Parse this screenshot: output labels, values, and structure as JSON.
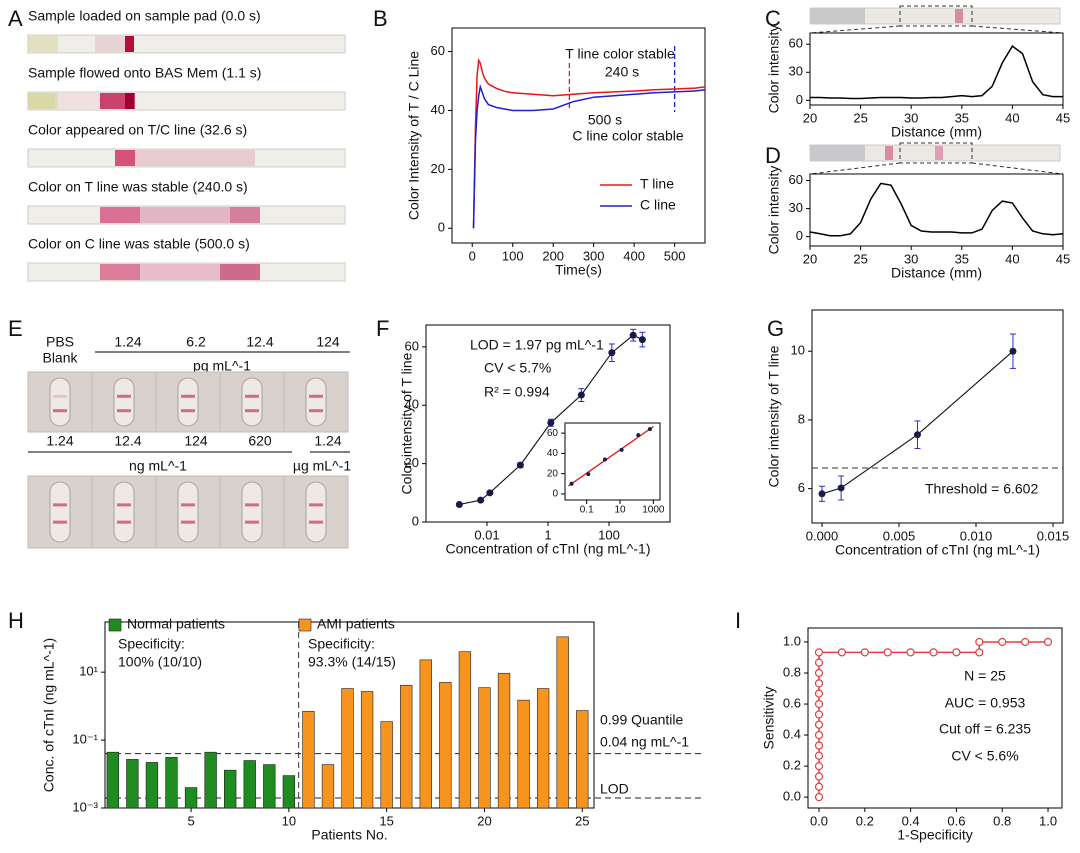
{
  "panel_labels": [
    "A",
    "B",
    "C",
    "D",
    "E",
    "F",
    "G",
    "H",
    "I"
  ],
  "panel_a": {
    "captions": [
      "Sample loaded  on sample pad (0.0 s)",
      "Sample flowed onto BAS Mem (1.1 s)",
      "Color appeared on T/C line (32.6 s)",
      "Color on T line was stable (240.0 s)",
      "Color on C line was stable (500.0 s)"
    ]
  },
  "panel_e": {
    "blank_label": [
      "PBS",
      "Blank"
    ],
    "row1_values": [
      "1.24",
      "6.2",
      "12.4",
      "124"
    ],
    "row1_unit": "pg mL^-1",
    "row2_values": [
      "1.24",
      "12.4",
      "124",
      "620",
      "1.24"
    ],
    "row2_units": [
      "ng mL^-1",
      "µg mL^-1"
    ]
  },
  "chart_data": [
    {
      "type": "line",
      "x": [
        3,
        8,
        12,
        16,
        20,
        25,
        30,
        40,
        60,
        80,
        100,
        150,
        200,
        250,
        300,
        350,
        400,
        450,
        500,
        550,
        575
      ],
      "series": [
        {
          "name": "T line",
          "color": "#e8161b",
          "values": [
            0,
            35,
            52,
            57,
            56,
            53,
            51,
            49,
            47.5,
            46.5,
            46,
            45.5,
            45,
            45.5,
            46,
            46.3,
            46.6,
            47,
            47.3,
            47.6,
            48
          ]
        },
        {
          "name": "C line",
          "color": "#1f1fd6",
          "values": [
            0,
            30,
            40,
            45,
            48,
            46,
            44,
            42,
            41,
            40.5,
            40,
            40,
            40.5,
            43,
            44.5,
            45,
            45.5,
            46,
            46.3,
            46.6,
            47
          ]
        }
      ],
      "xlim": [
        -50,
        575
      ],
      "ylim": [
        -5,
        68
      ],
      "xticks": [
        0,
        100,
        200,
        300,
        400,
        500
      ],
      "yticks": [
        0,
        20,
        40,
        60
      ],
      "xlabel": "Time(s)",
      "ylabel": "Color Intensity of T / C Line",
      "legend": "lower right",
      "vlines": [
        {
          "x": 240,
          "color": "#e8161b"
        },
        {
          "x": 500,
          "color": "#1f1fd6"
        }
      ],
      "annotations": [
        {
          "text": "T line color stable",
          "color": "#e8161b"
        },
        {
          "text": "240 s",
          "color": "#e8161b"
        },
        {
          "text": "500 s",
          "color": "#1f1fd6"
        },
        {
          "text": "C line color stable",
          "color": "#1f1fd6"
        }
      ]
    },
    {
      "type": "line",
      "x": [
        20,
        21,
        22,
        23,
        24,
        25,
        26,
        27,
        28,
        29,
        30,
        31,
        32,
        33,
        34,
        35,
        36,
        37,
        38,
        39,
        40,
        41,
        42,
        43,
        44,
        45
      ],
      "series": [
        {
          "color": "#000000",
          "values": [
            3,
            3,
            2.5,
            2.5,
            2,
            2,
            2.5,
            3,
            3,
            3,
            2.5,
            2.5,
            3,
            3,
            4,
            5,
            4,
            5,
            15,
            40,
            58,
            50,
            20,
            6,
            4,
            4
          ]
        }
      ],
      "xlim": [
        20,
        45
      ],
      "ylim": [
        -5,
        72
      ],
      "xticks": [
        20,
        25,
        30,
        35,
        40,
        45
      ],
      "yticks": [
        0,
        30,
        60
      ],
      "xlabel": "Distance (mm)",
      "ylabel": "Color intensity"
    },
    {
      "type": "line",
      "x": [
        20,
        21,
        22,
        23,
        24,
        25,
        26,
        27,
        28,
        29,
        30,
        31,
        32,
        33,
        34,
        35,
        36,
        37,
        38,
        39,
        40,
        41,
        42,
        43,
        44,
        45
      ],
      "series": [
        {
          "color": "#000000",
          "values": [
            5,
            3,
            1,
            1,
            3,
            15,
            40,
            57,
            55,
            35,
            12,
            6,
            5,
            5,
            5,
            4,
            4,
            8,
            28,
            38,
            36,
            20,
            6,
            3,
            2,
            3
          ]
        }
      ],
      "xlim": [
        20,
        45
      ],
      "ylim": [
        -10,
        67
      ],
      "xticks": [
        20,
        25,
        30,
        35,
        40,
        45
      ],
      "yticks": [
        0,
        30,
        60
      ],
      "xlabel": "Distance (mm)",
      "ylabel": "Color intensity"
    },
    {
      "type": "scatter",
      "x": [
        0.00124,
        0.0062,
        0.0124,
        0.124,
        1.24,
        12.4,
        124,
        620,
        1240
      ],
      "values": [
        6,
        7.5,
        10,
        19.5,
        34,
        43.5,
        58,
        64,
        62.5
      ],
      "errors": [
        0.4,
        0.5,
        0.6,
        0.8,
        1.2,
        2.2,
        3,
        2,
        2.5
      ],
      "color": "#1a1a4a",
      "error_color": "#2b2bd0",
      "connect": true,
      "xscale": "log",
      "xlim": [
        0.0001,
        10000
      ],
      "ylim": [
        0,
        67.5
      ],
      "xticks": [
        0.01,
        1,
        100
      ],
      "yticks": [
        0,
        20,
        40,
        60
      ],
      "xlabel": "Concentration of cTnI (ng mL^-1)",
      "ylabel": "Color intensity of T line",
      "annotations": [
        "LOD = 1.97 pg mL^-1",
        "CV < 5.7%",
        "R² = 0.994"
      ]
    },
    {
      "type": "scatter",
      "x": [
        0.0124,
        0.124,
        1.24,
        12.4,
        124,
        620
      ],
      "values": [
        10,
        19.5,
        34,
        43.5,
        58,
        64
      ],
      "color": "#1a1a4a",
      "xscale": "log",
      "fit": {
        "x": [
          0.008,
          1000
        ],
        "y": [
          7.9,
          66.5
        ],
        "color": "#e8161b"
      },
      "xlim": [
        0.005,
        2500
      ],
      "ylim": [
        -6,
        70
      ],
      "xticks": [
        0.1,
        10,
        1000
      ],
      "yticks": [
        0,
        20,
        40,
        60
      ]
    },
    {
      "type": "scatter",
      "x": [
        0,
        0.00124,
        0.0062,
        0.0124
      ],
      "values": [
        5.85,
        6.02,
        7.57,
        10.0
      ],
      "errors": [
        0.22,
        0.35,
        0.4,
        0.5
      ],
      "color": "#1a1a4a",
      "error_color": "#2b2bd0",
      "connect": true,
      "xlim": [
        -0.00065,
        0.01565
      ],
      "ylim": [
        5,
        11.2
      ],
      "xticks": [
        {
          "value": 0,
          "label": "0.000"
        },
        0.005,
        {
          "value": 0.01,
          "label": "0.010"
        },
        0.015
      ],
      "yticks": [
        6,
        8,
        10
      ],
      "xlabel": "Concentration of cTnI (ng mL^-1)",
      "ylabel": "Color intensity of T line",
      "threshold": 6.602,
      "threshold_label": "Threshold = 6.602"
    },
    {
      "type": "bar",
      "series": [
        {
          "name": "Normal patients",
          "color": "#1e8c1e",
          "x": [
            1,
            2,
            3,
            4,
            5,
            6,
            7,
            8,
            9,
            10
          ],
          "values": [
            0.044,
            0.027,
            0.022,
            0.031,
            0.004,
            0.044,
            0.013,
            0.025,
            0.019,
            0.009
          ]
        },
        {
          "name": "AMI patients",
          "color": "#f7941d",
          "x": [
            11,
            12,
            13,
            14,
            15,
            16,
            17,
            18,
            19,
            20,
            21,
            22,
            23,
            24,
            25
          ],
          "values": [
            0.7,
            0.019,
            3.3,
            2.7,
            0.35,
            4.1,
            23,
            5,
            40,
            3.5,
            9.3,
            1.5,
            3.3,
            110,
            0.74
          ]
        }
      ],
      "yscale": "log",
      "xlim": [
        0.6,
        25.6
      ],
      "ylim": [
        0.001,
        300
      ],
      "xticks": [
        5,
        10,
        15,
        20,
        25
      ],
      "yticks": [
        {
          "value": 0.001,
          "label": "10⁻³"
        },
        {
          "value": 0.1,
          "label": "10⁻¹"
        },
        {
          "value": 10,
          "label": "10¹"
        }
      ],
      "xlabel": "Patients No.",
      "ylabel": "Conc. of cTnI (ng mL^-1)",
      "hlines": [
        {
          "y": 0.04,
          "labels": [
            "0.99 Quantile",
            "0.04 ng mL^-1"
          ]
        },
        {
          "y": 0.00197,
          "labels": [
            "LOD"
          ]
        }
      ],
      "divider_x": 10.5,
      "annotations": [
        "Specificity:",
        "100% (10/10)",
        "Specificity:",
        "93.3% (14/15)"
      ]
    },
    {
      "type": "line",
      "markers": true,
      "x": [
        0,
        0,
        0,
        0,
        0,
        0,
        0,
        0,
        0,
        0,
        0,
        0,
        0,
        0,
        0,
        0.1,
        0.2,
        0.3,
        0.4,
        0.5,
        0.6,
        0.7,
        0.7,
        0.8,
        0.9,
        1.0
      ],
      "series": [
        {
          "color": "#e04040",
          "values": [
            0,
            0.067,
            0.133,
            0.2,
            0.267,
            0.333,
            0.4,
            0.467,
            0.533,
            0.6,
            0.667,
            0.733,
            0.8,
            0.867,
            0.933,
            0.933,
            0.933,
            0.933,
            0.933,
            0.933,
            0.933,
            0.933,
            1,
            1,
            1,
            1
          ]
        }
      ],
      "xlim": [
        -0.048,
        1.061
      ],
      "ylim": [
        -0.07,
        1.09
      ],
      "xticks": [
        {
          "value": 0,
          "label": "0.0"
        },
        0.2,
        0.4,
        0.6,
        0.8,
        {
          "value": 1,
          "label": "1.0"
        }
      ],
      "yticks": [
        {
          "value": 0,
          "label": "0.0"
        },
        0.2,
        0.4,
        0.6,
        0.8,
        {
          "value": 1,
          "label": "1.0"
        }
      ],
      "xlabel": "1-Specificity",
      "ylabel": "Sensitivity",
      "annotations": [
        "N = 25",
        "AUC = 0.953",
        "Cut off = 6.235",
        "CV < 5.6%"
      ]
    }
  ]
}
